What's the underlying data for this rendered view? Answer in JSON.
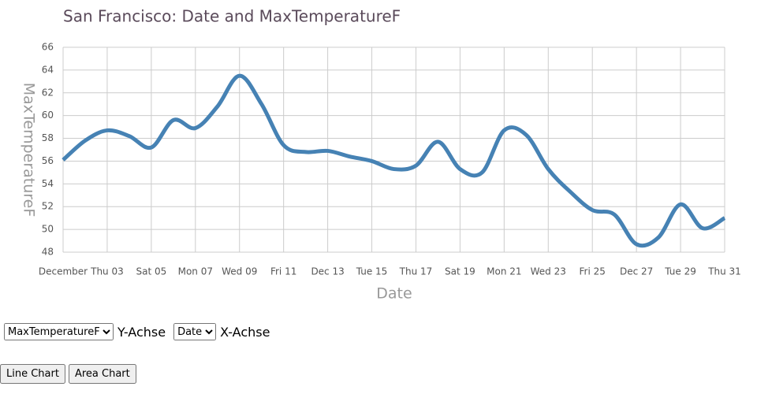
{
  "chart_data": {
    "type": "line",
    "title": "San Francisco: Date and MaxTemperatureF",
    "x_label": "Date",
    "y_label": "MaxTemperatureF",
    "x": [
      1,
      2,
      3,
      4,
      5,
      6,
      7,
      8,
      9,
      10,
      11,
      12,
      13,
      14,
      15,
      16,
      17,
      18,
      19,
      20,
      21,
      22,
      23,
      24,
      25,
      26,
      27,
      28,
      29,
      30,
      31
    ],
    "values": [
      56.1,
      57.8,
      58.7,
      58.2,
      57.2,
      59.6,
      58.9,
      60.8,
      63.5,
      61.0,
      57.4,
      56.8,
      56.9,
      56.4,
      56.0,
      55.3,
      55.6,
      57.7,
      55.3,
      55.0,
      58.7,
      58.3,
      55.3,
      53.3,
      51.7,
      51.3,
      48.7,
      49.3,
      52.2,
      50.1,
      51.0
    ],
    "color": "#4682b4",
    "xlim": [
      1,
      31
    ],
    "xticks": [
      {
        "value": 1,
        "label": "December"
      },
      {
        "value": 3,
        "label": "Thu 03"
      },
      {
        "value": 5,
        "label": "Sat 05"
      },
      {
        "value": 7,
        "label": "Mon 07"
      },
      {
        "value": 9,
        "label": "Wed 09"
      },
      {
        "value": 11,
        "label": "Fri 11"
      },
      {
        "value": 13,
        "label": "Dec 13"
      },
      {
        "value": 15,
        "label": "Tue 15"
      },
      {
        "value": 17,
        "label": "Thu 17"
      },
      {
        "value": 19,
        "label": "Sat 19"
      },
      {
        "value": 21,
        "label": "Mon 21"
      },
      {
        "value": 23,
        "label": "Wed 23"
      },
      {
        "value": 25,
        "label": "Fri 25"
      },
      {
        "value": 27,
        "label": "Dec 27"
      },
      {
        "value": 29,
        "label": "Tue 29"
      },
      {
        "value": 31,
        "label": "Thu 31"
      }
    ],
    "ylim": [
      48,
      66
    ],
    "yticks": [
      48,
      50,
      52,
      54,
      56,
      58,
      60,
      62,
      64,
      66
    ],
    "grid": true
  },
  "controls": {
    "y_select": [
      "MaxTemperatureF"
    ],
    "y_label": "Y-Achse",
    "x_select": [
      "Date"
    ],
    "x_label": "X-Achse",
    "buttons": [
      "Line Chart",
      "Area Chart"
    ]
  }
}
